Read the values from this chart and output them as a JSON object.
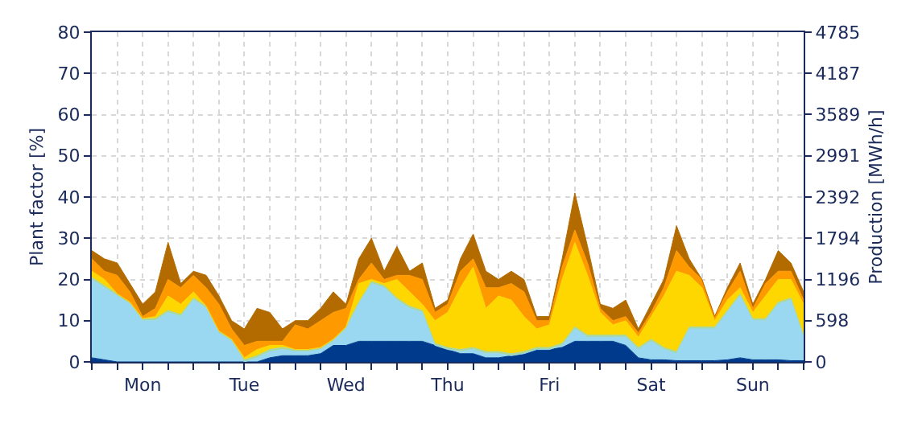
{
  "chart_data": {
    "type": "area",
    "stacked": true,
    "ylabel": "Plant factor [%]",
    "y2label": "Production [MWh/h]",
    "categories": [
      null,
      null,
      null,
      null,
      "Mon",
      null,
      null,
      null,
      null,
      null,
      null,
      null,
      "Tue",
      null,
      null,
      null,
      null,
      null,
      null,
      null,
      "Wed",
      null,
      null,
      null,
      null,
      null,
      null,
      null,
      "Thu",
      null,
      null,
      null,
      null,
      null,
      null,
      null,
      "Fri",
      null,
      null,
      null,
      null,
      null,
      null,
      null,
      "Sat",
      null,
      null,
      null,
      null,
      null,
      null,
      null,
      "Sun",
      null,
      null,
      null,
      null
    ],
    "series": [
      {
        "color": "#003a8c",
        "values": [
          1,
          0.5,
          0,
          0,
          0,
          0,
          0,
          0,
          0,
          0,
          0,
          0,
          0,
          0,
          1,
          1.5,
          1.5,
          1.5,
          2,
          4,
          4,
          5,
          5,
          5,
          5,
          5,
          5,
          4,
          3,
          2,
          2,
          1,
          1,
          1.5,
          2,
          3,
          3,
          3.5,
          5,
          5,
          5,
          5,
          4,
          1,
          0.5,
          0.5,
          0.3,
          0.3,
          0.3,
          0.3,
          0.5,
          1,
          0.5,
          0.5,
          0.5,
          0.3,
          0.3
        ]
      },
      {
        "color": "#99d8f0",
        "values": [
          19,
          17.5,
          16,
          14,
          10,
          10,
          12,
          11,
          15,
          13,
          7,
          5,
          0,
          1,
          1.5,
          1.5,
          1,
          1,
          1,
          1,
          4,
          9,
          14,
          13,
          10,
          8,
          7,
          0,
          0,
          0.5,
          1,
          1,
          1,
          0,
          0,
          0,
          0,
          0.5,
          3,
          1,
          1,
          1,
          2,
          2,
          4.5,
          2.5,
          1.7,
          7.7,
          7.7,
          7.7,
          11.5,
          15,
          9.5,
          9.5,
          13.5,
          14.7,
          5.7
        ]
      },
      {
        "color": "#a8d8a0",
        "values": [
          0.5,
          0.5,
          0.5,
          0.5,
          0.5,
          0.5,
          0.5,
          0.5,
          0.5,
          0.5,
          0.5,
          0.5,
          0.5,
          0.5,
          0.5,
          0.5,
          0.5,
          0.5,
          0.5,
          0.5,
          0.5,
          0.5,
          0.5,
          0.5,
          0.5,
          0.5,
          0.5,
          0.5,
          0.5,
          0.5,
          0.5,
          0.5,
          0.5,
          0.5,
          0.5,
          0.5,
          0.5,
          0.5,
          0.5,
          0.5,
          0.5,
          0.5,
          0.5,
          0.5,
          0.5,
          0.5,
          0.5,
          0.5,
          0.5,
          0.5,
          0.5,
          0.5,
          0.5,
          0.5,
          0.5,
          0.5,
          0.5
        ]
      },
      {
        "color": "#ffd700",
        "values": [
          1.5,
          1.5,
          0,
          0,
          0,
          0.5,
          3.5,
          2.5,
          1.5,
          0,
          0,
          0,
          0.5,
          1.5,
          1,
          0.5,
          0,
          0,
          0,
          0,
          0,
          4.5,
          0.5,
          0.5,
          4.5,
          3.5,
          1.5,
          5.5,
          8.5,
          15,
          19.5,
          10.5,
          13.5,
          13,
          8.5,
          4.5,
          5.5,
          15.5,
          20.5,
          14.5,
          5.5,
          2.5,
          3.5,
          2.5,
          5.5,
          12.5,
          19.5,
          12.5,
          9.5,
          1.5,
          2.5,
          1.5,
          1.5,
          5.5,
          5.5,
          4.5,
          7.5
        ]
      },
      {
        "color": "#ff9900",
        "values": [
          3,
          2,
          4.5,
          2.5,
          0.5,
          2,
          4,
          4,
          4,
          4.5,
          6.5,
          2.5,
          3,
          2,
          1,
          1,
          6,
          5,
          6.5,
          6.5,
          4.5,
          1,
          4,
          1,
          1,
          4,
          6,
          2,
          2,
          4,
          2,
          5,
          2,
          4,
          6,
          2,
          1,
          3,
          3,
          3,
          1,
          1,
          1,
          1,
          1,
          2,
          5,
          2,
          2,
          1,
          2,
          4,
          1,
          3,
          2,
          2,
          1
        ]
      },
      {
        "color": "#b36b00",
        "values": [
          2,
          3,
          3,
          2,
          3,
          4,
          9,
          1,
          1,
          3,
          2,
          2,
          4,
          8,
          7,
          3,
          1,
          2,
          3,
          5,
          1,
          5,
          6,
          2,
          7,
          1,
          4,
          1,
          1,
          3,
          6,
          4,
          2,
          3,
          3,
          1,
          1,
          2,
          9,
          4,
          1,
          3,
          4,
          1,
          2,
          2,
          6,
          2,
          0,
          0,
          1,
          2,
          1,
          1,
          5,
          2,
          2
        ]
      }
    ],
    "ylim": [
      0,
      80
    ],
    "yticks": [
      0,
      10,
      20,
      30,
      40,
      50,
      60,
      70,
      80
    ],
    "y2lim": [
      0,
      4785
    ],
    "y2ticks": [
      0,
      598,
      1196,
      1794,
      2392,
      2991,
      3589,
      4187,
      4785
    ],
    "grid": true,
    "marker": "none"
  }
}
